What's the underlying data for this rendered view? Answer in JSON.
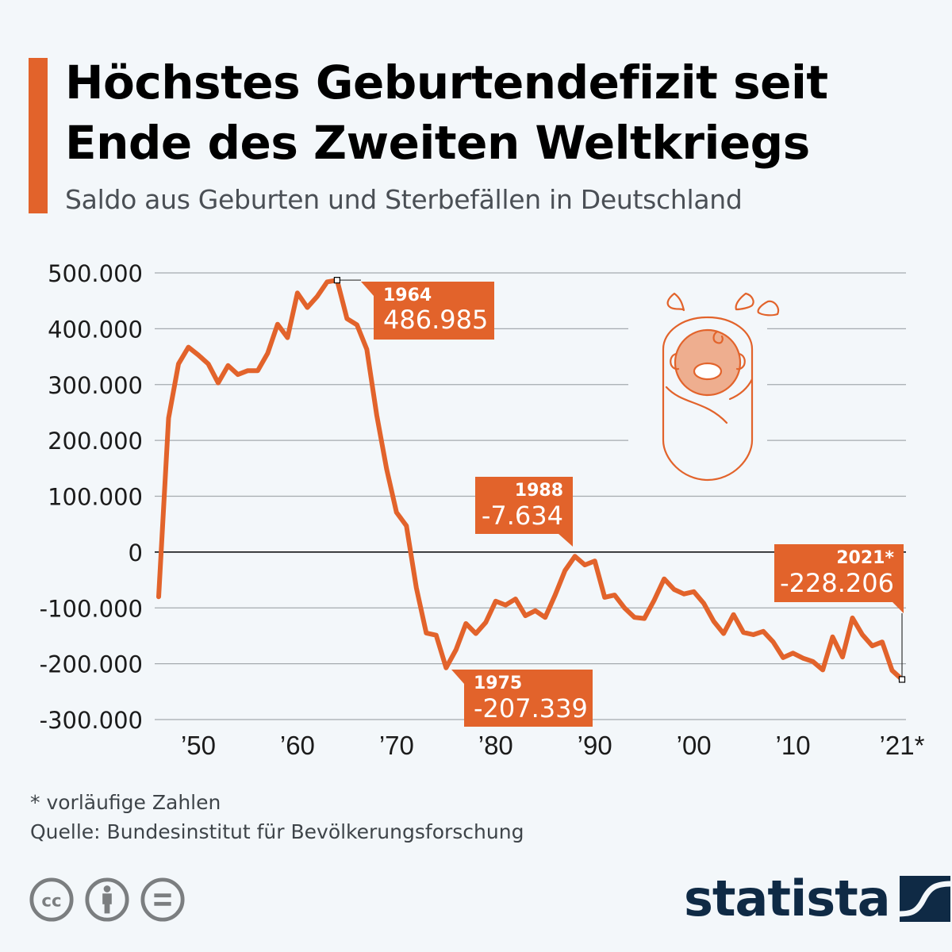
{
  "header": {
    "title_line1": "Höchstes Geburtendefizit seit",
    "title_line2": "Ende des Zweiten Weltkriegs",
    "subtitle": "Saldo aus Geburten und Sterbefällen in Deutschland"
  },
  "colors": {
    "accent": "#e2632b",
    "background": "#f3f7fa",
    "gridline": "#a5aaaf",
    "zero_line": "#000000",
    "logo": "#0f2a45",
    "license_icons": "#7b7e80",
    "illustration_fill": "#eeae8f"
  },
  "chart_data": {
    "type": "line",
    "title": "Höchstes Geburtendefizit seit Ende des Zweiten Weltkriegs",
    "subtitle": "Saldo aus Geburten und Sterbefällen in Deutschland",
    "xlabel": "",
    "ylabel": "",
    "ylim": [
      -300000,
      500000
    ],
    "yticks": [
      500000,
      400000,
      300000,
      200000,
      100000,
      0,
      -100000,
      -200000,
      -300000
    ],
    "ytick_labels": [
      "500.000",
      "400.000",
      "300.000",
      "200.000",
      "100.000",
      "0",
      "-100.000",
      "-200.000",
      "-300.000"
    ],
    "xlim": [
      1946,
      2021
    ],
    "xticks": [
      1950,
      1960,
      1970,
      1980,
      1990,
      2000,
      2010,
      2021
    ],
    "xtick_labels": [
      "’50",
      "’60",
      "’70",
      "’80",
      "’90",
      "’00",
      "’10",
      "’21*"
    ],
    "grid": true,
    "legend": "none",
    "series": [
      {
        "name": "Saldo aus Geburten und Sterbefällen",
        "color": "#e2632b",
        "x": [
          1946,
          1947,
          1948,
          1949,
          1950,
          1951,
          1952,
          1953,
          1954,
          1955,
          1956,
          1957,
          1958,
          1959,
          1960,
          1961,
          1962,
          1963,
          1964,
          1965,
          1966,
          1967,
          1968,
          1969,
          1970,
          1971,
          1972,
          1973,
          1974,
          1975,
          1976,
          1977,
          1978,
          1979,
          1980,
          1981,
          1982,
          1983,
          1984,
          1985,
          1986,
          1987,
          1988,
          1989,
          1990,
          1991,
          1992,
          1993,
          1994,
          1995,
          1996,
          1997,
          1998,
          1999,
          2000,
          2001,
          2002,
          2003,
          2004,
          2005,
          2006,
          2007,
          2008,
          2009,
          2010,
          2011,
          2012,
          2013,
          2014,
          2015,
          2016,
          2017,
          2018,
          2019,
          2020,
          2021
        ],
        "values": [
          -80000,
          240000,
          337000,
          367000,
          353000,
          337000,
          303000,
          334000,
          318000,
          325000,
          325000,
          356000,
          408000,
          384000,
          464000,
          438000,
          458000,
          484000,
          486985,
          418000,
          407000,
          363000,
          245000,
          149000,
          71000,
          47000,
          -64000,
          -145000,
          -149000,
          -207339,
          -175000,
          -128000,
          -146000,
          -126000,
          -88000,
          -95000,
          -84000,
          -114000,
          -105000,
          -117000,
          -77000,
          -33000,
          -7634,
          -23000,
          -16000,
          -81000,
          -77000,
          -100000,
          -117000,
          -119000,
          -86000,
          -48000,
          -67000,
          -75000,
          -71000,
          -92000,
          -124000,
          -146000,
          -112000,
          -144000,
          -148000,
          -142000,
          -161000,
          -189000,
          -181000,
          -190000,
          -196000,
          -211000,
          -152000,
          -188000,
          -118000,
          -148000,
          -168000,
          -161000,
          -212000,
          -228206
        ]
      }
    ],
    "annotations": [
      {
        "year": 1964,
        "year_label": "1964",
        "value": 486985,
        "value_label": "486.985"
      },
      {
        "year": 1975,
        "year_label": "1975",
        "value": -207339,
        "value_label": "-207.339"
      },
      {
        "year": 1988,
        "year_label": "1988",
        "value": -7634,
        "value_label": "-7.634"
      },
      {
        "year": 2021,
        "year_label": "2021*",
        "value": -228206,
        "value_label": "-228.206"
      }
    ]
  },
  "footer": {
    "note": "* vorläufige Zahlen",
    "source": "Quelle: Bundesinstitut für Bevölkerungsforschung",
    "license_icons": [
      "cc-icon",
      "attribution-icon",
      "no-derivatives-icon"
    ],
    "logo_text": "statista"
  }
}
